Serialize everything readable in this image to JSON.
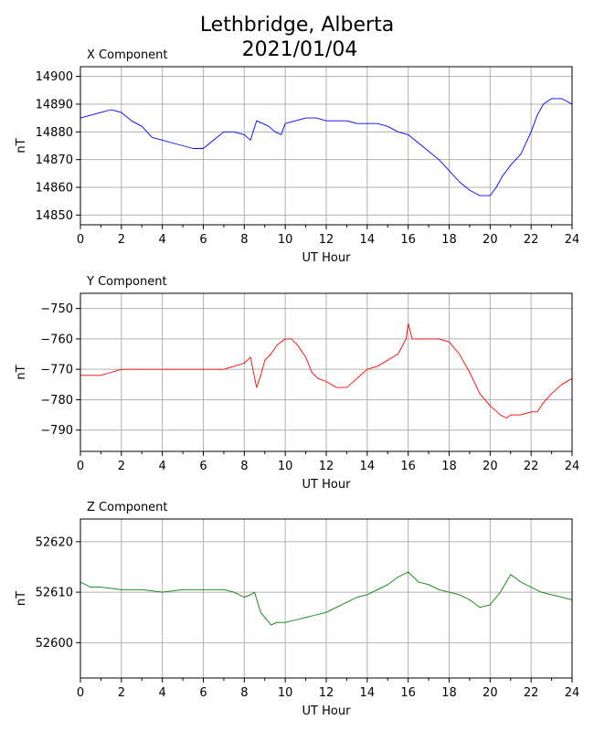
{
  "title_line1": "Lethbridge, Alberta",
  "title_line2": "2021/01/04",
  "chart_data": [
    {
      "type": "line",
      "title": "X Component",
      "xlabel": "UT Hour",
      "ylabel": "nT",
      "color": "#0000ff",
      "xlim": [
        0,
        24
      ],
      "ylim": [
        14846.5,
        14903.5
      ],
      "xticks": [
        0,
        2,
        4,
        6,
        8,
        10,
        12,
        14,
        16,
        18,
        20,
        22,
        24
      ],
      "yticks": [
        14850,
        14860,
        14870,
        14880,
        14890,
        14900
      ],
      "grid": true,
      "series": [
        {
          "x": [
            0,
            0.5,
            1,
            1.5,
            2,
            2.5,
            3,
            3.5,
            4,
            4.5,
            5,
            5.5,
            6,
            6.5,
            7,
            7.5,
            8,
            8.3,
            8.6,
            8.9,
            9.2,
            9.5,
            9.8,
            10,
            10.5,
            11,
            11.5,
            12,
            12.5,
            13,
            13.5,
            14,
            14.5,
            15,
            15.5,
            16,
            16.5,
            17,
            17.5,
            18,
            18.5,
            19,
            19.5,
            20,
            20.3,
            20.6,
            21,
            21.5,
            22,
            22.3,
            22.6,
            23,
            23.5,
            24
          ],
          "y": [
            14885,
            14886,
            14887,
            14888,
            14887,
            14884,
            14882,
            14878,
            14877,
            14876,
            14875,
            14874,
            14874,
            14877,
            14880,
            14880,
            14879,
            14877,
            14884,
            14883,
            14882,
            14880,
            14879,
            14883,
            14884,
            14885,
            14885,
            14884,
            14884,
            14884,
            14883,
            14883,
            14883,
            14882,
            14880,
            14879,
            14876,
            14873,
            14870,
            14866,
            14862,
            14859,
            14857,
            14857,
            14860,
            14864,
            14868,
            14872,
            14880,
            14886,
            14890,
            14892,
            14892,
            14890
          ]
        }
      ]
    },
    {
      "type": "line",
      "title": "Y Component",
      "xlabel": "UT Hour",
      "ylabel": "nT",
      "color": "#ff0000",
      "xlim": [
        0,
        24
      ],
      "ylim": [
        -797,
        -745
      ],
      "xticks": [
        0,
        2,
        4,
        6,
        8,
        10,
        12,
        14,
        16,
        18,
        20,
        22,
        24
      ],
      "yticks": [
        -790,
        -780,
        -770,
        -760,
        -750
      ],
      "grid": true,
      "series": [
        {
          "x": [
            0,
            0.5,
            1,
            1.5,
            2,
            2.5,
            3,
            3.5,
            4,
            4.5,
            5,
            5.5,
            6,
            6.5,
            7,
            7.5,
            8,
            8.3,
            8.6,
            8.8,
            9,
            9.3,
            9.6,
            10,
            10.3,
            10.6,
            11,
            11.3,
            11.6,
            12,
            12.5,
            13,
            13.5,
            14,
            14.5,
            15,
            15.5,
            15.9,
            16,
            16.2,
            16.5,
            17,
            17.5,
            18,
            18.5,
            19,
            19.5,
            20,
            20.5,
            20.8,
            21,
            21.5,
            22,
            22.3,
            22.6,
            23,
            23.5,
            24
          ],
          "y": [
            -772,
            -772,
            -772,
            -771,
            -770,
            -770,
            -770,
            -770,
            -770,
            -770,
            -770,
            -770,
            -770,
            -770,
            -770,
            -769,
            -768,
            -766,
            -776,
            -772,
            -767,
            -765,
            -762,
            -760,
            -760,
            -762,
            -766,
            -771,
            -773,
            -774,
            -776,
            -776,
            -773,
            -770,
            -769,
            -767,
            -765,
            -760,
            -755,
            -760,
            -760,
            -760,
            -760,
            -761,
            -765,
            -771,
            -778,
            -782,
            -785,
            -786,
            -785,
            -785,
            -784,
            -784,
            -781,
            -778,
            -775,
            -773
          ]
        }
      ]
    },
    {
      "type": "line",
      "title": "Z Component",
      "xlabel": "UT Hour",
      "ylabel": "nT",
      "color": "#008000",
      "xlim": [
        0,
        24
      ],
      "ylim": [
        52593,
        52624.5
      ],
      "xticks": [
        0,
        2,
        4,
        6,
        8,
        10,
        12,
        14,
        16,
        18,
        20,
        22,
        24
      ],
      "yticks": [
        52600,
        52610,
        52620
      ],
      "grid": true,
      "series": [
        {
          "x": [
            0,
            0.5,
            1,
            2,
            3,
            4,
            5,
            6,
            7,
            7.5,
            8,
            8.3,
            8.5,
            8.8,
            9,
            9.3,
            9.6,
            10,
            10.5,
            11,
            11.5,
            12,
            12.5,
            13,
            13.5,
            14,
            14.5,
            15,
            15.5,
            16,
            16.5,
            17,
            17.5,
            18,
            18.5,
            19,
            19.5,
            20,
            20.5,
            21,
            21.5,
            22,
            22.5,
            23,
            23.5,
            24
          ],
          "y": [
            52612,
            52611,
            52611,
            52610.5,
            52610.5,
            52610,
            52610.5,
            52610.5,
            52610.5,
            52610,
            52609,
            52609.5,
            52610,
            52606,
            52605,
            52603.5,
            52604,
            52604,
            52604.5,
            52605,
            52605.5,
            52606,
            52607,
            52608,
            52609,
            52609.5,
            52610.5,
            52611.5,
            52613,
            52614,
            52612,
            52611.5,
            52610.5,
            52610,
            52609.5,
            52608.5,
            52607,
            52607.5,
            52610,
            52613.5,
            52612,
            52611,
            52610,
            52609.5,
            52609,
            52608.5
          ]
        }
      ]
    }
  ]
}
